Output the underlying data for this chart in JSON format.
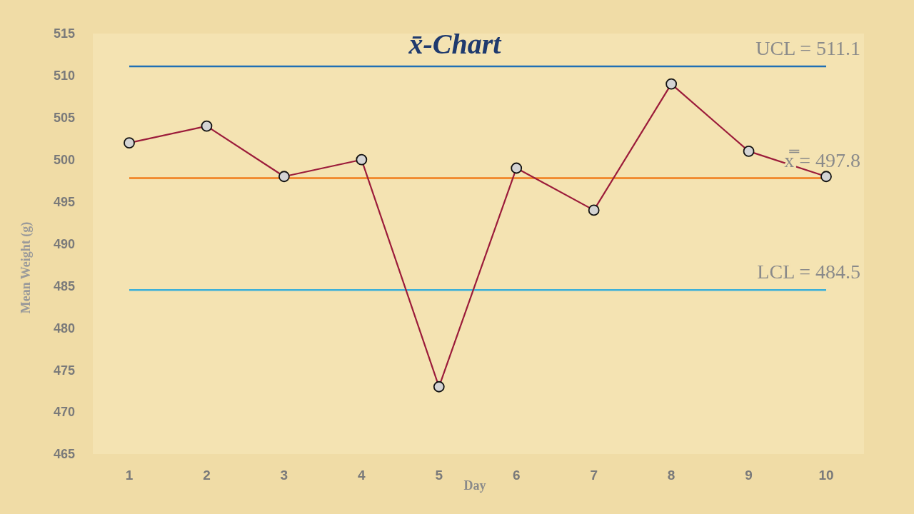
{
  "chart_data": {
    "type": "line",
    "title": "x̄-Chart",
    "xlabel": "Day",
    "ylabel": "Mean Weight (g)",
    "categories": [
      "1",
      "2",
      "3",
      "4",
      "5",
      "6",
      "7",
      "8",
      "9",
      "10"
    ],
    "series": [
      {
        "color": "#9b1b3a",
        "values": [
          502,
          504,
          498,
          500,
          473,
          499,
          494,
          509,
          501,
          498
        ]
      }
    ],
    "ylim": [
      465,
      515
    ],
    "yticks": [
      465,
      470,
      475,
      480,
      485,
      490,
      495,
      500,
      505,
      510,
      515
    ],
    "ref_lines": [
      {
        "axis": "y",
        "value": 511.1,
        "label": "UCL = 511.1",
        "color": "#1f6fb5"
      },
      {
        "axis": "y",
        "value": 497.8,
        "label": "x̿ = 497.8",
        "color": "#f07c1a"
      },
      {
        "axis": "y",
        "value": 484.5,
        "label": "LCL = 484.5",
        "color": "#3cb0d8"
      }
    ],
    "grid": false,
    "marker": "circle",
    "line_style": "solid"
  }
}
